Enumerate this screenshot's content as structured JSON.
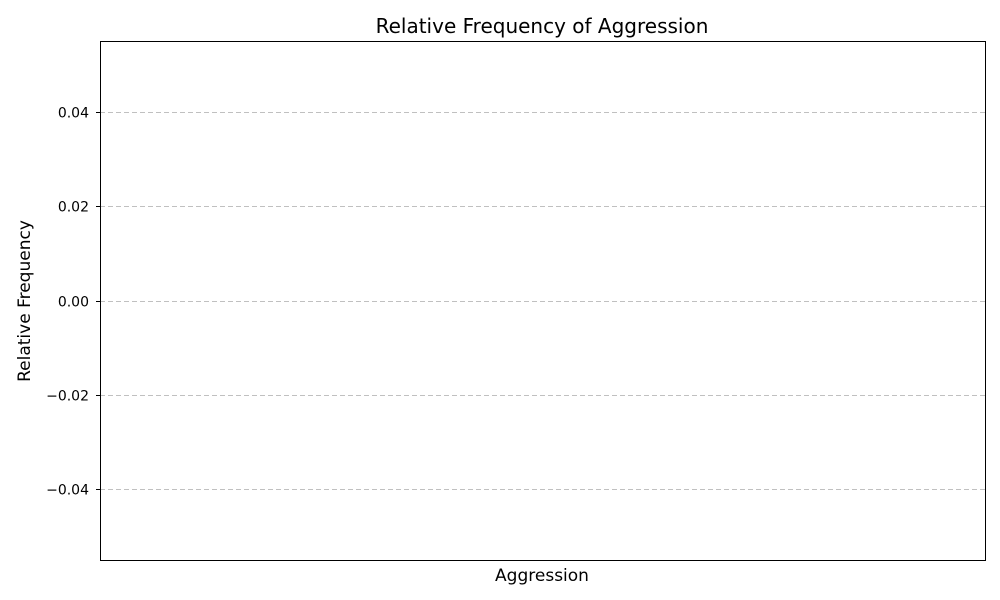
{
  "chart_data": {
    "type": "bar",
    "title": "Relative Frequency of Aggression",
    "xlabel": "Aggression",
    "ylabel": "Relative Frequency",
    "categories": [],
    "values": [],
    "ylim": [
      -0.055,
      0.055
    ],
    "yticks": [
      {
        "value": 0.04,
        "label": "0.04"
      },
      {
        "value": 0.02,
        "label": "0.02"
      },
      {
        "value": 0.0,
        "label": "0.00"
      },
      {
        "value": -0.02,
        "label": "−0.02"
      },
      {
        "value": -0.04,
        "label": "−0.04"
      }
    ],
    "grid": "y",
    "legend": "none"
  }
}
